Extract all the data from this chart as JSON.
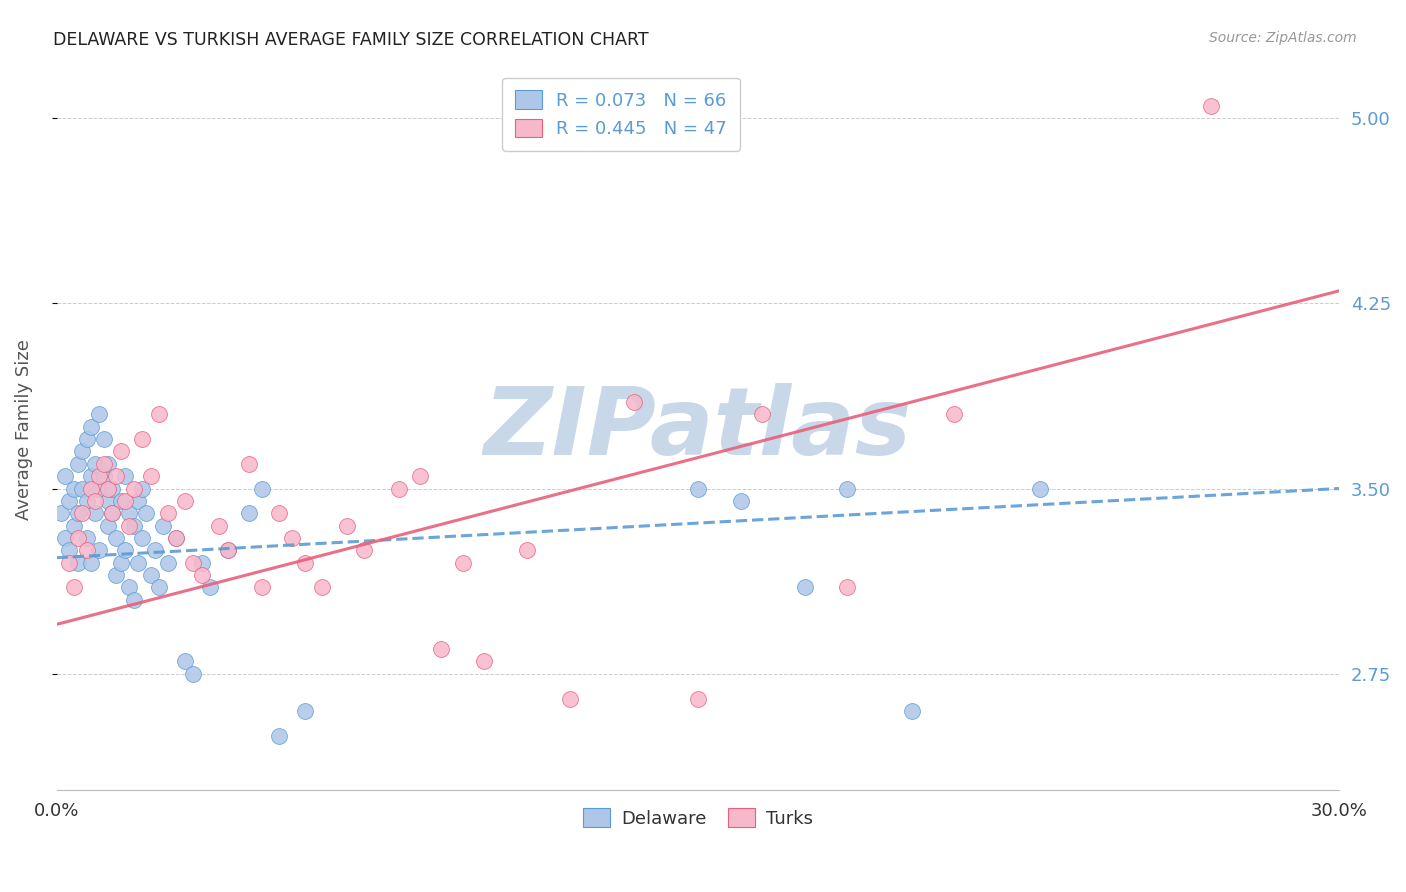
{
  "title": "DELAWARE VS TURKISH AVERAGE FAMILY SIZE CORRELATION CHART",
  "source": "Source: ZipAtlas.com",
  "ylabel": "Average Family Size",
  "yticks": [
    2.75,
    3.5,
    4.25,
    5.0
  ],
  "xmin": 0.0,
  "xmax": 0.3,
  "ymin": 2.28,
  "ymax": 5.2,
  "legend1_label": "R = 0.073   N = 66",
  "legend2_label": "R = 0.445   N = 47",
  "color_blue": "#aec6e8",
  "color_pink": "#f7b8cb",
  "trendline_blue_color": "#5b9bd5",
  "trendline_pink_color": "#e8607a",
  "watermark": "ZIPatlas",
  "watermark_color": "#c8d8e8",
  "del_trendline_x0": 0.0,
  "del_trendline_y0": 3.22,
  "del_trendline_x1": 0.3,
  "del_trendline_y1": 3.5,
  "turk_trendline_x0": 0.0,
  "turk_trendline_y0": 2.95,
  "turk_trendline_x1": 0.3,
  "turk_trendline_y1": 4.3,
  "delaware_scatter_x": [
    0.001,
    0.002,
    0.002,
    0.003,
    0.003,
    0.004,
    0.004,
    0.005,
    0.005,
    0.005,
    0.006,
    0.006,
    0.007,
    0.007,
    0.007,
    0.008,
    0.008,
    0.008,
    0.009,
    0.009,
    0.01,
    0.01,
    0.01,
    0.011,
    0.011,
    0.012,
    0.012,
    0.012,
    0.013,
    0.013,
    0.014,
    0.014,
    0.015,
    0.015,
    0.016,
    0.016,
    0.017,
    0.017,
    0.018,
    0.018,
    0.019,
    0.019,
    0.02,
    0.02,
    0.021,
    0.022,
    0.023,
    0.024,
    0.025,
    0.026,
    0.028,
    0.03,
    0.032,
    0.034,
    0.036,
    0.04,
    0.045,
    0.048,
    0.052,
    0.058,
    0.15,
    0.16,
    0.175,
    0.185,
    0.2,
    0.23
  ],
  "delaware_scatter_y": [
    3.4,
    3.3,
    3.55,
    3.45,
    3.25,
    3.35,
    3.5,
    3.4,
    3.6,
    3.2,
    3.5,
    3.65,
    3.45,
    3.3,
    3.7,
    3.75,
    3.55,
    3.2,
    3.4,
    3.6,
    3.8,
    3.5,
    3.25,
    3.55,
    3.7,
    3.6,
    3.45,
    3.35,
    3.5,
    3.4,
    3.3,
    3.15,
    3.2,
    3.45,
    3.55,
    3.25,
    3.4,
    3.1,
    3.05,
    3.35,
    3.2,
    3.45,
    3.3,
    3.5,
    3.4,
    3.15,
    3.25,
    3.1,
    3.35,
    3.2,
    3.3,
    2.8,
    2.75,
    3.2,
    3.1,
    3.25,
    3.4,
    3.5,
    2.5,
    2.6,
    3.5,
    3.45,
    3.1,
    3.5,
    2.6,
    3.5
  ],
  "turks_scatter_x": [
    0.003,
    0.004,
    0.005,
    0.006,
    0.007,
    0.008,
    0.009,
    0.01,
    0.011,
    0.012,
    0.013,
    0.014,
    0.015,
    0.016,
    0.017,
    0.018,
    0.02,
    0.022,
    0.024,
    0.026,
    0.028,
    0.03,
    0.032,
    0.034,
    0.038,
    0.04,
    0.045,
    0.048,
    0.052,
    0.055,
    0.058,
    0.062,
    0.068,
    0.072,
    0.08,
    0.085,
    0.09,
    0.095,
    0.1,
    0.11,
    0.12,
    0.135,
    0.15,
    0.165,
    0.185,
    0.21,
    0.27
  ],
  "turks_scatter_y": [
    3.2,
    3.1,
    3.3,
    3.4,
    3.25,
    3.5,
    3.45,
    3.55,
    3.6,
    3.5,
    3.4,
    3.55,
    3.65,
    3.45,
    3.35,
    3.5,
    3.7,
    3.55,
    3.8,
    3.4,
    3.3,
    3.45,
    3.2,
    3.15,
    3.35,
    3.25,
    3.6,
    3.1,
    3.4,
    3.3,
    3.2,
    3.1,
    3.35,
    3.25,
    3.5,
    3.55,
    2.85,
    3.2,
    2.8,
    3.25,
    2.65,
    3.85,
    2.65,
    3.8,
    3.1,
    3.8,
    5.05
  ]
}
